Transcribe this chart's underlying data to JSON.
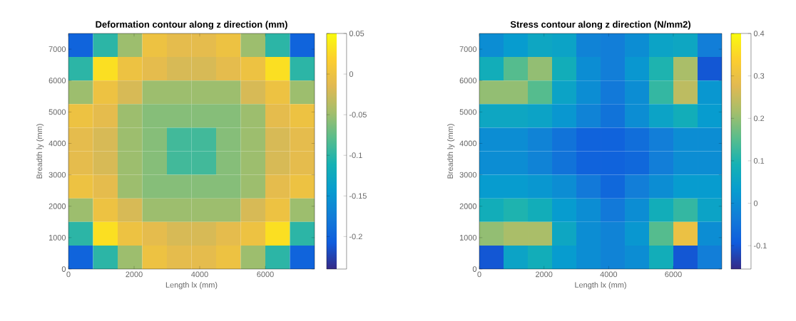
{
  "chart_data": [
    {
      "type": "heatmap",
      "title": "Deformation contour along z direction (mm)",
      "xlabel": "Length lx (mm)",
      "ylabel": "Breadth ly (mm)",
      "x": [
        375,
        1125,
        1875,
        2625,
        3375,
        4125,
        4875,
        5625,
        6375,
        7125
      ],
      "y": [
        7125,
        6375,
        5625,
        4875,
        4125,
        3375,
        2625,
        1875,
        1125,
        375
      ],
      "cells": [
        [
          -0.2,
          -0.1,
          -0.05,
          0,
          -0.01,
          -0.01,
          0,
          -0.05,
          -0.1,
          -0.2
        ],
        [
          -0.1,
          0.03,
          0,
          -0.01,
          -0.02,
          -0.02,
          -0.01,
          0,
          0.03,
          -0.1
        ],
        [
          -0.05,
          0,
          -0.02,
          -0.05,
          -0.05,
          -0.05,
          -0.05,
          -0.02,
          0,
          -0.05
        ],
        [
          0,
          -0.01,
          -0.05,
          -0.06,
          -0.06,
          -0.06,
          -0.06,
          -0.05,
          -0.01,
          0
        ],
        [
          -0.01,
          -0.02,
          -0.05,
          -0.06,
          -0.09,
          -0.09,
          -0.06,
          -0.05,
          -0.02,
          -0.01
        ],
        [
          -0.01,
          -0.02,
          -0.05,
          -0.06,
          -0.09,
          -0.09,
          -0.06,
          -0.05,
          -0.02,
          -0.01
        ],
        [
          0,
          -0.01,
          -0.05,
          -0.06,
          -0.06,
          -0.06,
          -0.06,
          -0.05,
          -0.01,
          0
        ],
        [
          -0.05,
          0,
          -0.02,
          -0.05,
          -0.05,
          -0.05,
          -0.05,
          -0.02,
          0,
          -0.05
        ],
        [
          -0.1,
          0.03,
          0,
          -0.01,
          -0.02,
          -0.02,
          -0.01,
          0,
          0.03,
          -0.1
        ],
        [
          -0.2,
          -0.1,
          -0.05,
          0,
          -0.01,
          -0.01,
          0,
          -0.05,
          -0.1,
          -0.2
        ]
      ],
      "xlim": [
        0,
        7500
      ],
      "ylim": [
        0,
        7500
      ],
      "xticks": [
        0,
        2000,
        4000,
        6000
      ],
      "yticks": [
        0,
        1000,
        2000,
        3000,
        4000,
        5000,
        6000,
        7000
      ],
      "clim": [
        -0.24,
        0.05
      ],
      "cticks": [
        -0.2,
        -0.15,
        -0.1,
        -0.05,
        0,
        0.05
      ]
    },
    {
      "type": "heatmap",
      "title": "Stress contour along z direction (N/mm2)",
      "xlabel": "Length lx (mm)",
      "ylabel": "Breadth ly (mm)",
      "x": [
        375,
        1125,
        1875,
        2625,
        3375,
        4125,
        4875,
        5625,
        6375,
        7125
      ],
      "y": [
        7125,
        6375,
        5625,
        4875,
        4125,
        3375,
        2625,
        1875,
        1125,
        375
      ],
      "cells": [
        [
          0,
          0.03,
          0.06,
          0.05,
          -0.02,
          -0.03,
          0,
          0.05,
          0.06,
          -0.03
        ],
        [
          0.08,
          0.15,
          0.2,
          0.08,
          0,
          -0.03,
          0.02,
          0.1,
          0.22,
          -0.1
        ],
        [
          0.2,
          0.2,
          0.15,
          0.05,
          0,
          -0.04,
          0,
          0.12,
          0.24,
          0.02
        ],
        [
          0.06,
          0.06,
          0.05,
          0.02,
          -0.02,
          -0.05,
          0,
          0.05,
          0.08,
          0.03
        ],
        [
          0,
          0,
          -0.02,
          -0.05,
          -0.08,
          -0.08,
          -0.06,
          -0.03,
          0,
          0
        ],
        [
          0,
          0,
          -0.02,
          -0.05,
          -0.08,
          -0.08,
          -0.07,
          -0.03,
          0,
          0
        ],
        [
          0.03,
          0.03,
          0.02,
          0,
          -0.04,
          -0.07,
          -0.03,
          0,
          0.03,
          0.03
        ],
        [
          0.08,
          0.1,
          0.08,
          0.03,
          0,
          -0.04,
          0,
          0.08,
          0.12,
          0.05
        ],
        [
          0.2,
          0.22,
          0.22,
          0.06,
          0,
          -0.02,
          0.02,
          0.15,
          0.3,
          0
        ],
        [
          -0.1,
          0.05,
          0.08,
          0.03,
          0,
          -0.02,
          0,
          0.08,
          -0.1,
          -0.03
        ]
      ],
      "xlim": [
        0,
        7500
      ],
      "ylim": [
        0,
        7500
      ],
      "xticks": [
        0,
        2000,
        4000,
        6000
      ],
      "yticks": [
        0,
        1000,
        2000,
        3000,
        4000,
        5000,
        6000,
        7000
      ],
      "clim": [
        -0.155,
        0.4
      ],
      "cticks": [
        -0.1,
        0,
        0.1,
        0.2,
        0.3,
        0.4
      ]
    }
  ]
}
